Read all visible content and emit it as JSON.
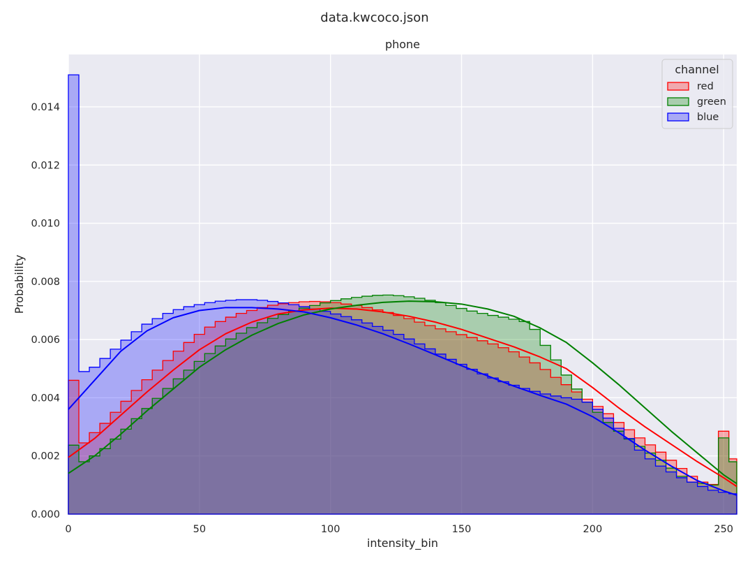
{
  "suptitle": "data.kwcoco.json",
  "chart_data": {
    "type": "histogram",
    "title": "phone",
    "xlabel": "intensity_bin",
    "ylabel": "Probability",
    "xlim": [
      0,
      255
    ],
    "ylim": [
      0,
      0.0158
    ],
    "bin_width": 4,
    "xticks": [
      0,
      50,
      100,
      150,
      200,
      250
    ],
    "yticks": [
      0.0,
      0.002,
      0.004,
      0.006,
      0.008,
      0.01,
      0.012,
      0.014
    ],
    "ytick_labels": [
      "0.000",
      "0.002",
      "0.004",
      "0.006",
      "0.008",
      "0.010",
      "0.012",
      "0.014"
    ],
    "grid": true,
    "legend": {
      "title": "channel",
      "placement": "top-right"
    },
    "series": [
      {
        "name": "red",
        "color": "#ff0000",
        "values": [
          0.0046,
          0.00245,
          0.0028,
          0.00312,
          0.0035,
          0.00388,
          0.00425,
          0.00462,
          0.00495,
          0.00528,
          0.0056,
          0.0059,
          0.00618,
          0.00643,
          0.00662,
          0.00677,
          0.0069,
          0.007,
          0.0071,
          0.00718,
          0.00723,
          0.00727,
          0.0073,
          0.00731,
          0.0073,
          0.00727,
          0.00722,
          0.00717,
          0.0071,
          0.00702,
          0.00693,
          0.00683,
          0.00672,
          0.0066,
          0.00648,
          0.00637,
          0.00627,
          0.00617,
          0.00607,
          0.00596,
          0.00585,
          0.00572,
          0.00558,
          0.0054,
          0.0052,
          0.00497,
          0.0047,
          0.00445,
          0.0042,
          0.00395,
          0.0037,
          0.00345,
          0.00315,
          0.0029,
          0.00262,
          0.00238,
          0.00213,
          0.00185,
          0.00157,
          0.0013,
          0.0011,
          0.00102,
          0.00285,
          0.0019
        ],
        "kde": [
          [
            0,
            0.00195
          ],
          [
            10,
            0.0026
          ],
          [
            20,
            0.0034
          ],
          [
            30,
            0.0042
          ],
          [
            40,
            0.00495
          ],
          [
            50,
            0.00565
          ],
          [
            60,
            0.0062
          ],
          [
            70,
            0.0066
          ],
          [
            80,
            0.00688
          ],
          [
            90,
            0.00702
          ],
          [
            100,
            0.00708
          ],
          [
            110,
            0.00705
          ],
          [
            120,
            0.00695
          ],
          [
            130,
            0.0068
          ],
          [
            140,
            0.0066
          ],
          [
            150,
            0.00635
          ],
          [
            160,
            0.00605
          ],
          [
            170,
            0.00575
          ],
          [
            180,
            0.0054
          ],
          [
            190,
            0.005
          ],
          [
            200,
            0.00435
          ],
          [
            210,
            0.00365
          ],
          [
            220,
            0.003
          ],
          [
            230,
            0.0024
          ],
          [
            240,
            0.0018
          ],
          [
            250,
            0.00125
          ],
          [
            255,
            0.00095
          ]
        ]
      },
      {
        "name": "green",
        "color": "#008000",
        "values": [
          0.00237,
          0.0018,
          0.002,
          0.00225,
          0.00258,
          0.00292,
          0.00328,
          0.00363,
          0.00398,
          0.00432,
          0.00465,
          0.00495,
          0.00525,
          0.00552,
          0.00578,
          0.00602,
          0.00622,
          0.00641,
          0.00658,
          0.00673,
          0.00686,
          0.00697,
          0.00708,
          0.00717,
          0.00726,
          0.00734,
          0.0074,
          0.00745,
          0.00749,
          0.00752,
          0.00753,
          0.00751,
          0.00747,
          0.00742,
          0.00735,
          0.00727,
          0.00717,
          0.00707,
          0.00698,
          0.0069,
          0.00683,
          0.00677,
          0.0067,
          0.00662,
          0.00635,
          0.0058,
          0.0053,
          0.00478,
          0.0043,
          0.00385,
          0.0035,
          0.00315,
          0.00285,
          0.00258,
          0.00233,
          0.0021,
          0.00185,
          0.00158,
          0.0013,
          0.0011,
          0.00105,
          0.001,
          0.00262,
          0.0018
        ],
        "kde": [
          [
            0,
            0.0014
          ],
          [
            10,
            0.002
          ],
          [
            20,
            0.00275
          ],
          [
            30,
            0.00355
          ],
          [
            40,
            0.0043
          ],
          [
            50,
            0.00505
          ],
          [
            60,
            0.00565
          ],
          [
            70,
            0.00615
          ],
          [
            80,
            0.00655
          ],
          [
            90,
            0.00685
          ],
          [
            100,
            0.00705
          ],
          [
            110,
            0.00718
          ],
          [
            120,
            0.00728
          ],
          [
            130,
            0.00732
          ],
          [
            140,
            0.0073
          ],
          [
            150,
            0.00722
          ],
          [
            160,
            0.00705
          ],
          [
            170,
            0.0068
          ],
          [
            180,
            0.0064
          ],
          [
            190,
            0.0059
          ],
          [
            200,
            0.0052
          ],
          [
            210,
            0.00445
          ],
          [
            220,
            0.00365
          ],
          [
            230,
            0.00285
          ],
          [
            240,
            0.0021
          ],
          [
            250,
            0.00135
          ],
          [
            255,
            0.00105
          ]
        ]
      },
      {
        "name": "blue",
        "color": "#0000ff",
        "values": [
          0.0151,
          0.0049,
          0.00505,
          0.00535,
          0.00567,
          0.00598,
          0.00627,
          0.00653,
          0.00672,
          0.0069,
          0.00703,
          0.00713,
          0.0072,
          0.00727,
          0.00732,
          0.00735,
          0.00737,
          0.00737,
          0.00735,
          0.00731,
          0.00726,
          0.0072,
          0.00713,
          0.00705,
          0.00697,
          0.00688,
          0.00679,
          0.00668,
          0.00657,
          0.00645,
          0.00632,
          0.00618,
          0.00602,
          0.00585,
          0.00568,
          0.0055,
          0.00532,
          0.00515,
          0.00498,
          0.00482,
          0.00468,
          0.00455,
          0.00443,
          0.00432,
          0.00422,
          0.00413,
          0.00406,
          0.004,
          0.00395,
          0.00385,
          0.0036,
          0.0033,
          0.00295,
          0.0026,
          0.0022,
          0.0019,
          0.00165,
          0.00145,
          0.00125,
          0.0011,
          0.00095,
          0.00082,
          0.00075,
          0.0007
        ],
        "kde": [
          [
            0,
            0.0036
          ],
          [
            10,
            0.0046
          ],
          [
            20,
            0.0056
          ],
          [
            30,
            0.0063
          ],
          [
            40,
            0.00675
          ],
          [
            50,
            0.007
          ],
          [
            60,
            0.0071
          ],
          [
            70,
            0.0071
          ],
          [
            80,
            0.00705
          ],
          [
            90,
            0.00695
          ],
          [
            100,
            0.00675
          ],
          [
            110,
            0.0065
          ],
          [
            120,
            0.0062
          ],
          [
            130,
            0.00585
          ],
          [
            140,
            0.00548
          ],
          [
            150,
            0.0051
          ],
          [
            160,
            0.00475
          ],
          [
            170,
            0.0044
          ],
          [
            180,
            0.00408
          ],
          [
            190,
            0.00378
          ],
          [
            200,
            0.00335
          ],
          [
            210,
            0.0028
          ],
          [
            220,
            0.0022
          ],
          [
            230,
            0.00165
          ],
          [
            240,
            0.00115
          ],
          [
            250,
            0.0008
          ],
          [
            255,
            0.00065
          ]
        ]
      }
    ]
  }
}
